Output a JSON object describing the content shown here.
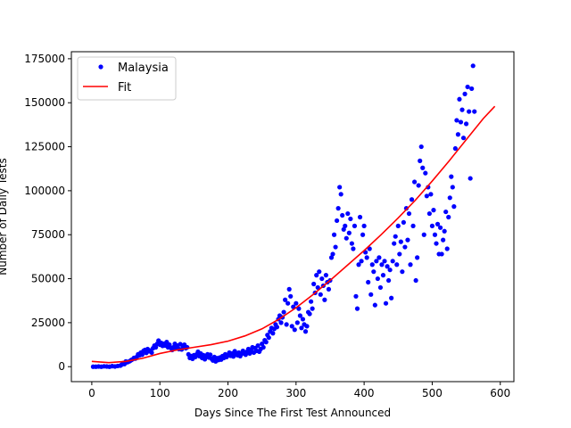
{
  "chart_data": {
    "type": "scatter",
    "xlabel": "Days Since The First Test Announced",
    "ylabel": "Number of Daily Tests",
    "xlim": [
      -30,
      620
    ],
    "ylim": [
      -8500,
      179000
    ],
    "xticks": [
      0,
      100,
      200,
      300,
      400,
      500,
      600
    ],
    "yticks": [
      0,
      25000,
      50000,
      75000,
      100000,
      125000,
      150000,
      175000
    ],
    "grid": false,
    "legend_position": "top-left",
    "series": [
      {
        "name": "Malaysia",
        "kind": "points",
        "color": "#0000ff",
        "points": [
          [
            2,
            0
          ],
          [
            6,
            0
          ],
          [
            10,
            100
          ],
          [
            14,
            0
          ],
          [
            18,
            200
          ],
          [
            22,
            100
          ],
          [
            26,
            0
          ],
          [
            30,
            300
          ],
          [
            34,
            100
          ],
          [
            38,
            400
          ],
          [
            42,
            600
          ],
          [
            44,
            1200
          ],
          [
            46,
            2000
          ],
          [
            48,
            1500
          ],
          [
            50,
            3000
          ],
          [
            52,
            2500
          ],
          [
            54,
            2800
          ],
          [
            56,
            3200
          ],
          [
            58,
            3800
          ],
          [
            60,
            4200
          ],
          [
            62,
            5000
          ],
          [
            64,
            4600
          ],
          [
            66,
            5500
          ],
          [
            68,
            7000
          ],
          [
            70,
            6500
          ],
          [
            72,
            8000
          ],
          [
            74,
            6800
          ],
          [
            76,
            9000
          ],
          [
            78,
            9500
          ],
          [
            80,
            7800
          ],
          [
            82,
            10000
          ],
          [
            84,
            8800
          ],
          [
            86,
            9200
          ],
          [
            88,
            8000
          ],
          [
            90,
            10500
          ],
          [
            92,
            12000
          ],
          [
            94,
            11000
          ],
          [
            96,
            13000
          ],
          [
            98,
            14800
          ],
          [
            100,
            12500
          ],
          [
            102,
            13500
          ],
          [
            104,
            11800
          ],
          [
            106,
            13000
          ],
          [
            108,
            12000
          ],
          [
            110,
            14000
          ],
          [
            112,
            11000
          ],
          [
            114,
            12500
          ],
          [
            116,
            10800
          ],
          [
            118,
            9500
          ],
          [
            120,
            11000
          ],
          [
            122,
            13000
          ],
          [
            124,
            10500
          ],
          [
            126,
            12000
          ],
          [
            128,
            10000
          ],
          [
            130,
            12800
          ],
          [
            132,
            9800
          ],
          [
            134,
            11500
          ],
          [
            136,
            12500
          ],
          [
            138,
            10500
          ],
          [
            140,
            11000
          ],
          [
            142,
            7000
          ],
          [
            144,
            5000
          ],
          [
            146,
            6000
          ],
          [
            148,
            4500
          ],
          [
            150,
            6500
          ],
          [
            152,
            5500
          ],
          [
            154,
            7000
          ],
          [
            156,
            8500
          ],
          [
            158,
            6000
          ],
          [
            160,
            7500
          ],
          [
            162,
            5000
          ],
          [
            164,
            6500
          ],
          [
            166,
            4200
          ],
          [
            168,
            5800
          ],
          [
            170,
            7000
          ],
          [
            172,
            5200
          ],
          [
            174,
            6800
          ],
          [
            176,
            4500
          ],
          [
            178,
            3500
          ],
          [
            180,
            5500
          ],
          [
            182,
            3000
          ],
          [
            184,
            4800
          ],
          [
            186,
            3800
          ],
          [
            188,
            5200
          ],
          [
            190,
            4000
          ],
          [
            192,
            6000
          ],
          [
            194,
            5000
          ],
          [
            196,
            7000
          ],
          [
            198,
            5500
          ],
          [
            200,
            6500
          ],
          [
            202,
            8000
          ],
          [
            204,
            6200
          ],
          [
            206,
            7500
          ],
          [
            208,
            5800
          ],
          [
            210,
            8800
          ],
          [
            212,
            7000
          ],
          [
            214,
            6500
          ],
          [
            216,
            8000
          ],
          [
            218,
            6000
          ],
          [
            220,
            7200
          ],
          [
            222,
            9000
          ],
          [
            224,
            7800
          ],
          [
            226,
            6800
          ],
          [
            228,
            8500
          ],
          [
            230,
            10000
          ],
          [
            232,
            7500
          ],
          [
            234,
            9200
          ],
          [
            236,
            11000
          ],
          [
            238,
            8000
          ],
          [
            240,
            10500
          ],
          [
            242,
            9000
          ],
          [
            244,
            12000
          ],
          [
            246,
            8500
          ],
          [
            248,
            10000
          ],
          [
            250,
            13000
          ],
          [
            252,
            11000
          ],
          [
            254,
            15000
          ],
          [
            256,
            14000
          ],
          [
            258,
            18000
          ],
          [
            260,
            16500
          ],
          [
            262,
            20000
          ],
          [
            264,
            22000
          ],
          [
            266,
            19000
          ],
          [
            268,
            21500
          ],
          [
            270,
            24000
          ],
          [
            272,
            22500
          ],
          [
            274,
            27000
          ],
          [
            276,
            29000
          ],
          [
            278,
            25000
          ],
          [
            280,
            28000
          ],
          [
            282,
            31000
          ],
          [
            284,
            38000
          ],
          [
            286,
            24000
          ],
          [
            288,
            36000
          ],
          [
            290,
            44000
          ],
          [
            292,
            40000
          ],
          [
            294,
            23000
          ],
          [
            296,
            34000
          ],
          [
            298,
            21000
          ],
          [
            300,
            36000
          ],
          [
            302,
            25000
          ],
          [
            304,
            33000
          ],
          [
            306,
            29000
          ],
          [
            308,
            22000
          ],
          [
            310,
            27000
          ],
          [
            312,
            24000
          ],
          [
            314,
            20000
          ],
          [
            316,
            23000
          ],
          [
            318,
            31000
          ],
          [
            320,
            30000
          ],
          [
            322,
            37000
          ],
          [
            324,
            33000
          ],
          [
            326,
            47000
          ],
          [
            328,
            42000
          ],
          [
            330,
            52000
          ],
          [
            332,
            45000
          ],
          [
            334,
            54000
          ],
          [
            336,
            41000
          ],
          [
            338,
            50000
          ],
          [
            340,
            46000
          ],
          [
            342,
            38000
          ],
          [
            344,
            52000
          ],
          [
            346,
            48000
          ],
          [
            348,
            44000
          ],
          [
            350,
            49000
          ],
          [
            352,
            62000
          ],
          [
            354,
            64000
          ],
          [
            356,
            75000
          ],
          [
            358,
            68000
          ],
          [
            360,
            83000
          ],
          [
            362,
            90000
          ],
          [
            364,
            102000
          ],
          [
            366,
            98000
          ],
          [
            368,
            86000
          ],
          [
            370,
            78000
          ],
          [
            372,
            80000
          ],
          [
            374,
            73000
          ],
          [
            376,
            87000
          ],
          [
            378,
            76000
          ],
          [
            380,
            84000
          ],
          [
            382,
            70000
          ],
          [
            384,
            67000
          ],
          [
            386,
            80000
          ],
          [
            388,
            40000
          ],
          [
            390,
            33000
          ],
          [
            392,
            58000
          ],
          [
            394,
            85000
          ],
          [
            396,
            60000
          ],
          [
            398,
            75000
          ],
          [
            400,
            80000
          ],
          [
            402,
            65000
          ],
          [
            404,
            62000
          ],
          [
            406,
            48000
          ],
          [
            408,
            67000
          ],
          [
            410,
            41000
          ],
          [
            412,
            58000
          ],
          [
            414,
            54000
          ],
          [
            416,
            35000
          ],
          [
            418,
            60000
          ],
          [
            420,
            50000
          ],
          [
            422,
            62000
          ],
          [
            424,
            45000
          ],
          [
            426,
            58000
          ],
          [
            428,
            52000
          ],
          [
            430,
            60000
          ],
          [
            432,
            36000
          ],
          [
            434,
            57000
          ],
          [
            436,
            49000
          ],
          [
            438,
            55000
          ],
          [
            440,
            39000
          ],
          [
            442,
            60000
          ],
          [
            444,
            70000
          ],
          [
            446,
            74000
          ],
          [
            448,
            58000
          ],
          [
            450,
            80000
          ],
          [
            452,
            64000
          ],
          [
            454,
            71000
          ],
          [
            456,
            54000
          ],
          [
            458,
            82000
          ],
          [
            460,
            68000
          ],
          [
            462,
            90000
          ],
          [
            464,
            72000
          ],
          [
            466,
            87000
          ],
          [
            468,
            58000
          ],
          [
            470,
            95000
          ],
          [
            472,
            80000
          ],
          [
            474,
            105000
          ],
          [
            476,
            49000
          ],
          [
            478,
            62000
          ],
          [
            480,
            103000
          ],
          [
            482,
            117000
          ],
          [
            484,
            125000
          ],
          [
            486,
            113000
          ],
          [
            488,
            75000
          ],
          [
            490,
            110000
          ],
          [
            492,
            97000
          ],
          [
            494,
            102000
          ],
          [
            496,
            87000
          ],
          [
            498,
            98000
          ],
          [
            500,
            80000
          ],
          [
            502,
            89000
          ],
          [
            504,
            75000
          ],
          [
            506,
            70000
          ],
          [
            508,
            81000
          ],
          [
            510,
            64000
          ],
          [
            512,
            79000
          ],
          [
            514,
            64000
          ],
          [
            516,
            72000
          ],
          [
            518,
            77000
          ],
          [
            520,
            88000
          ],
          [
            522,
            67000
          ],
          [
            524,
            85000
          ],
          [
            526,
            96000
          ],
          [
            528,
            108000
          ],
          [
            530,
            102000
          ],
          [
            532,
            91000
          ],
          [
            534,
            124000
          ],
          [
            536,
            140000
          ],
          [
            538,
            132000
          ],
          [
            540,
            152000
          ],
          [
            542,
            139000
          ],
          [
            544,
            146000
          ],
          [
            546,
            130000
          ],
          [
            548,
            155000
          ],
          [
            550,
            138000
          ],
          [
            552,
            159000
          ],
          [
            554,
            145000
          ],
          [
            556,
            107000
          ],
          [
            558,
            158000
          ],
          [
            560,
            171000
          ],
          [
            562,
            145000
          ]
        ]
      },
      {
        "name": "Fit",
        "kind": "line",
        "color": "#ff0000",
        "points": [
          [
            0,
            3000
          ],
          [
            25,
            2300
          ],
          [
            50,
            3000
          ],
          [
            75,
            4800
          ],
          [
            100,
            7500
          ],
          [
            125,
            9500
          ],
          [
            150,
            11000
          ],
          [
            175,
            12500
          ],
          [
            200,
            14500
          ],
          [
            225,
            17500
          ],
          [
            250,
            21500
          ],
          [
            275,
            27000
          ],
          [
            300,
            33500
          ],
          [
            325,
            41000
          ],
          [
            350,
            49000
          ],
          [
            375,
            57500
          ],
          [
            400,
            66000
          ],
          [
            425,
            75000
          ],
          [
            450,
            84500
          ],
          [
            475,
            94500
          ],
          [
            500,
            105500
          ],
          [
            525,
            117000
          ],
          [
            550,
            129000
          ],
          [
            575,
            141000
          ],
          [
            592,
            148000
          ]
        ]
      }
    ]
  }
}
